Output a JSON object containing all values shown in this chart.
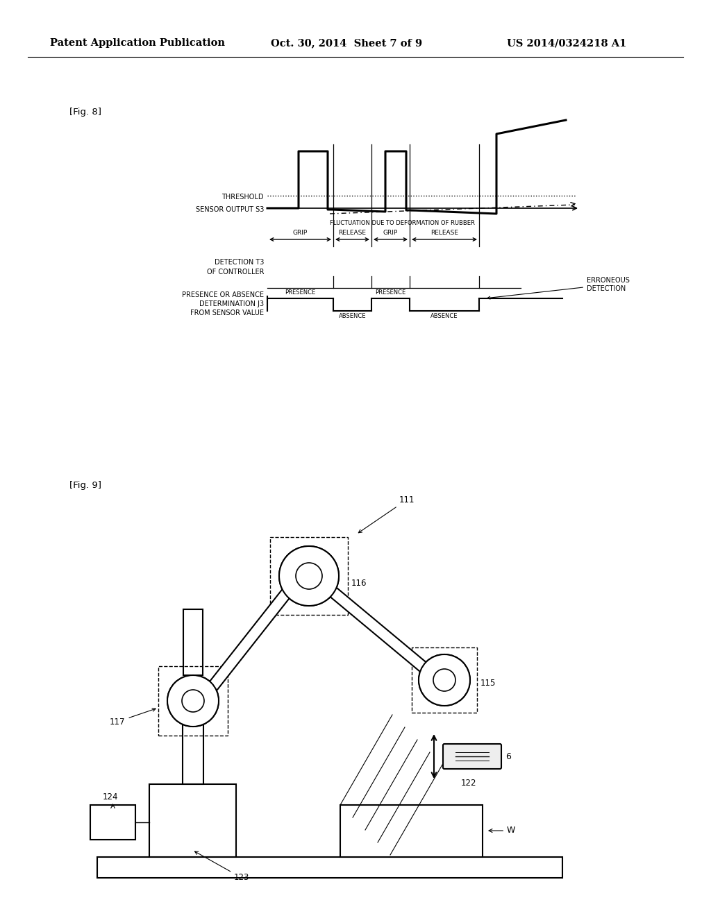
{
  "bg_color": "#ffffff",
  "header_left": "Patent Application Publication",
  "header_mid": "Oct. 30, 2014  Sheet 7 of 9",
  "header_right": "US 2014/0324218 A1",
  "fig8_label": "[Fig. 8]",
  "fig9_label": "[Fig. 9]",
  "threshold_label": "THRESHOLD",
  "sensor_label": "SENSOR OUTPUT S3",
  "fluctuation_label": "FLUCTUATION DUE TO DEFORMATION OF RUBBER",
  "grip_label": "GRIP",
  "release_label": "RELEASE",
  "detection_label": "DETECTION T3\nOF CONTROLLER",
  "presence_label": "PRESENCE OR ABSENCE\nDETERMINATION J3\nFROM SENSOR VALUE",
  "presence_text": "PRESENCE",
  "absence_text": "ABSENCE",
  "erroneous_label": "ERRONEOUS\nDETECTION"
}
